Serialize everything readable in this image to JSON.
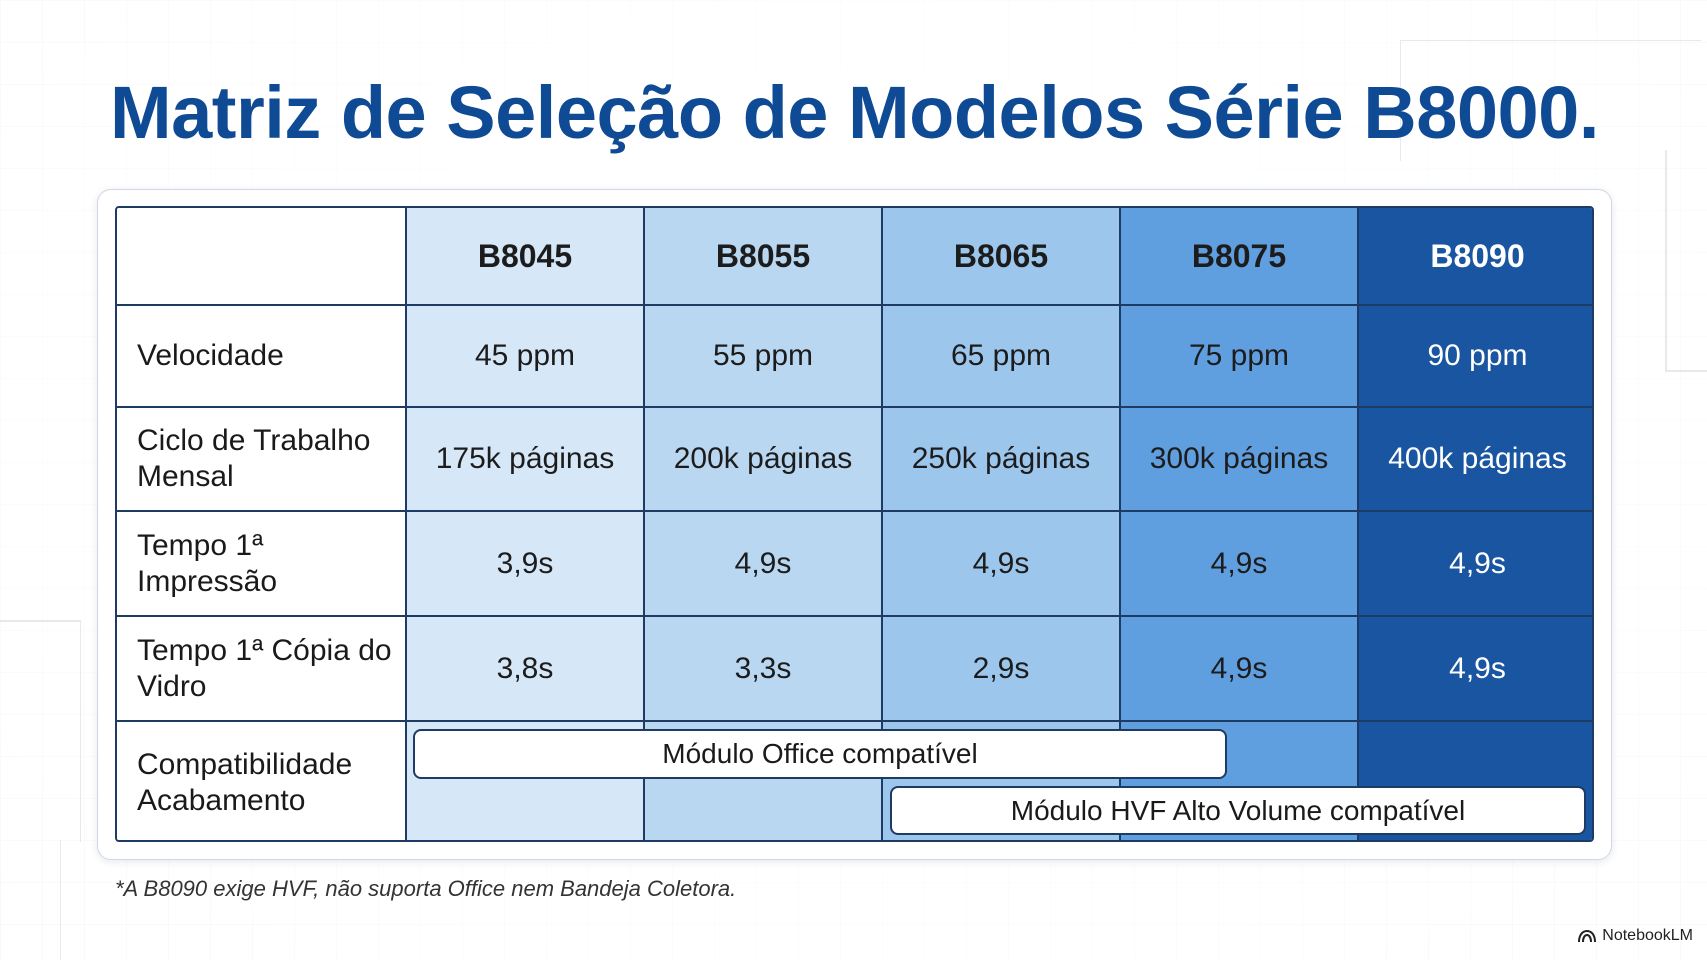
{
  "title": "Matriz de Seleção de Modelos Série B8000.",
  "table": {
    "columns": [
      "B8045",
      "B8055",
      "B8065",
      "B8075",
      "B8090"
    ],
    "column_colors": [
      "#d6e7f7",
      "#b9d7f1",
      "#9cc6ec",
      "#5f9fdf",
      "#1a55a1"
    ],
    "rows": [
      {
        "label": "Velocidade",
        "values": [
          "45 ppm",
          "55 ppm",
          "65 ppm",
          "75 ppm",
          "90 ppm"
        ]
      },
      {
        "label": "Ciclo de Trabalho Mensal",
        "values": [
          "175k páginas",
          "200k páginas",
          "250k páginas",
          "300k páginas",
          "400k páginas"
        ]
      },
      {
        "label": "Tempo 1ª Impressão",
        "values": [
          "3,9s",
          "4,9s",
          "4,9s",
          "4,9s",
          "4,9s"
        ]
      },
      {
        "label": "Tempo 1ª Cópia do Vidro",
        "values": [
          "3,8s",
          "3,3s",
          "2,9s",
          "4,9s",
          "4,9s"
        ]
      }
    ],
    "compat_label": "Compatibilidade Acabamento",
    "compat": {
      "office": "Módulo Office compatível",
      "hvf": "Módulo HVF Alto Volume compatível"
    }
  },
  "footnote": "*A B8090 exige HVF, não suporta Office nem Bandeja Coletora.",
  "brand": {
    "name": "NotebookLM",
    "icon": "notebooklm-icon"
  },
  "colors": {
    "title": "#0f4a94",
    "grid_border": "#1d3b63"
  }
}
